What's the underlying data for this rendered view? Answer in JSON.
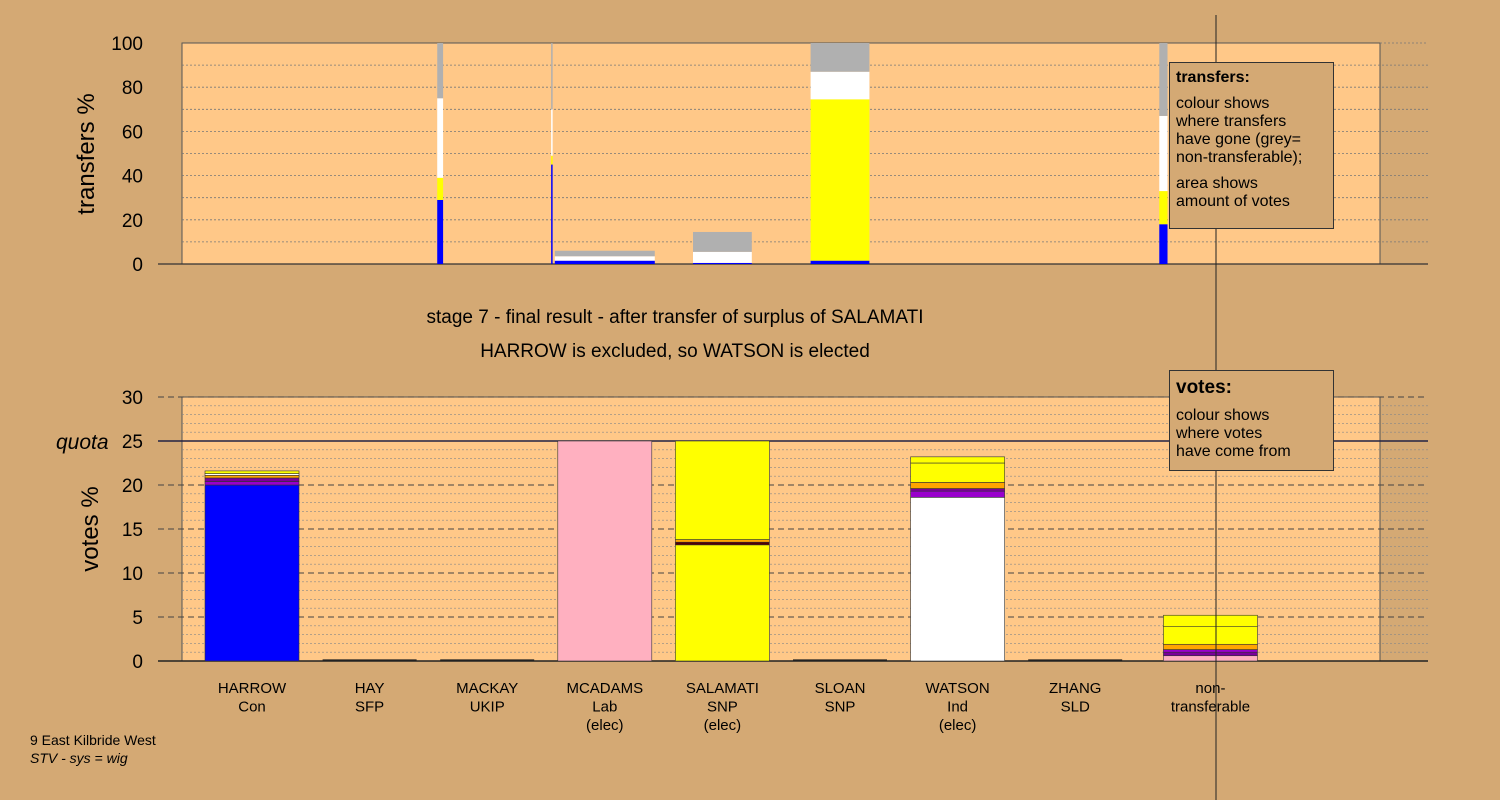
{
  "top_panel": {
    "ylabel": "transfers %",
    "yticks": [
      "0",
      "20",
      "40",
      "60",
      "80",
      "100"
    ]
  },
  "bottom_panel": {
    "ylabel": "votes %",
    "yticks": [
      "0",
      "5",
      "10",
      "15",
      "20",
      "25",
      "30"
    ],
    "quota_label": "quota"
  },
  "stage_text": {
    "line1": "stage 7 - final result - after transfer of surplus of SALAMATI",
    "line2": "HARROW is excluded, so WATSON is elected"
  },
  "legend_transfers": {
    "title": "transfers:",
    "lines1": [
      "colour shows",
      "where transfers",
      "have gone (grey=",
      "non-transferable);"
    ],
    "lines2": [
      "area shows",
      "amount of votes"
    ]
  },
  "legend_votes": {
    "title": "votes:",
    "lines": [
      "colour shows",
      "where votes",
      "have come from"
    ]
  },
  "footer": {
    "line1": "9 East Kilbride West",
    "line2": "STV - sys = wig"
  },
  "colors": {
    "Con": "#0000ff",
    "Lab": "#ffb0c0",
    "SNP": "#ffff00",
    "Ind": "#ffffff",
    "SLD": "#ffa500",
    "SFP": "#9900cc",
    "UKIP": "#7a0099",
    "Other": "#550000",
    "non-transferable": "#b0b0b0",
    "panel_bg": "#ffc888",
    "page_bg": "#d4a974"
  },
  "chart_data": [
    {
      "type": "bar",
      "panel": "transfers",
      "ylabel": "transfers %",
      "ylim": [
        0,
        100
      ],
      "transfers": [
        {
          "slot": 1.6,
          "width": 0.05,
          "segments": [
            {
              "color": "Con",
              "value": 29
            },
            {
              "color": "SNP",
              "value": 10
            },
            {
              "color": "Ind",
              "value": 36
            },
            {
              "color": "non-transferable",
              "value": 25
            }
          ]
        },
        {
          "slot": 2.55,
          "width": 0.01,
          "segments": [
            {
              "color": "Con",
              "value": 45
            },
            {
              "color": "SNP",
              "value": 4
            },
            {
              "color": "Ind",
              "value": 21
            },
            {
              "color": "non-transferable",
              "value": 30
            }
          ]
        },
        {
          "slot": 3,
          "width": 0.85,
          "segments": [
            {
              "color": "Con",
              "value": 1.5
            },
            {
              "color": "Ind",
              "value": 2
            },
            {
              "color": "non-transferable",
              "value": 2.5
            }
          ]
        },
        {
          "slot": 4,
          "width": 0.5,
          "segments": [
            {
              "color": "Con",
              "value": 0.5
            },
            {
              "color": "Ind",
              "value": 5
            },
            {
              "color": "non-transferable",
              "value": 9
            }
          ]
        },
        {
          "slot": 5,
          "width": 0.5,
          "segments": [
            {
              "color": "Con",
              "value": 1.5
            },
            {
              "color": "SNP",
              "value": 73
            },
            {
              "color": "Ind",
              "value": 12.5
            },
            {
              "color": "non-transferable",
              "value": 13
            }
          ]
        },
        {
          "slot": 7.75,
          "width": 0.07,
          "segments": [
            {
              "color": "Con",
              "value": 18
            },
            {
              "color": "SNP",
              "value": 15
            },
            {
              "color": "Ind",
              "value": 34
            },
            {
              "color": "non-transferable",
              "value": 33
            }
          ]
        }
      ]
    },
    {
      "type": "bar",
      "panel": "votes",
      "ylabel": "votes %",
      "ylim": [
        0,
        30
      ],
      "quota": 25,
      "categories": [
        [
          "HARROW",
          "Con",
          ""
        ],
        [
          "HAY",
          "SFP",
          ""
        ],
        [
          "MACKAY",
          "UKIP",
          ""
        ],
        [
          "MCADAMS",
          "Lab",
          "(elec)"
        ],
        [
          "SALAMATI",
          "SNP",
          "(elec)"
        ],
        [
          "SLOAN",
          "SNP",
          ""
        ],
        [
          "WATSON",
          "Ind",
          "(elec)"
        ],
        [
          "ZHANG",
          "SLD",
          ""
        ],
        [
          "non-",
          "transferable",
          ""
        ]
      ],
      "bars": [
        {
          "slot": 0,
          "segments": [
            {
              "color": "Con",
              "value": 20
            },
            {
              "color": "SFP",
              "value": 0.4
            },
            {
              "color": "UKIP",
              "value": 0.4
            },
            {
              "color": "SLD",
              "value": 0.3
            },
            {
              "color": "Ind",
              "value": 0.2
            },
            {
              "color": "SNP",
              "value": 0.3
            }
          ]
        },
        {
          "slot": 3,
          "segments": [
            {
              "color": "Lab",
              "value": 25
            }
          ]
        },
        {
          "slot": 4,
          "segments": [
            {
              "color": "SNP",
              "value": 13.2
            },
            {
              "color": "Other",
              "value": 0.3
            },
            {
              "color": "SLD",
              "value": 0.3
            },
            {
              "color": "SNP",
              "value": 11.2
            }
          ]
        },
        {
          "slot": 6,
          "segments": [
            {
              "color": "Ind",
              "value": 18.6
            },
            {
              "color": "SFP",
              "value": 0.7
            },
            {
              "color": "UKIP",
              "value": 0.3
            },
            {
              "color": "SLD",
              "value": 0.7
            },
            {
              "color": "SNP",
              "value": 2.2
            },
            {
              "color": "SNP",
              "value": 0.7
            }
          ]
        },
        {
          "slot": 8.15,
          "segments": [
            {
              "color": "Lab",
              "value": 0.6
            },
            {
              "color": "UKIP",
              "value": 0.4
            },
            {
              "color": "SFP",
              "value": 0.3
            },
            {
              "color": "SLD",
              "value": 0.6
            },
            {
              "color": "SNP",
              "value": 2
            },
            {
              "color": "SNP",
              "value": 1.3
            }
          ]
        }
      ],
      "zero_bars": [
        1,
        2,
        5,
        7
      ]
    }
  ]
}
